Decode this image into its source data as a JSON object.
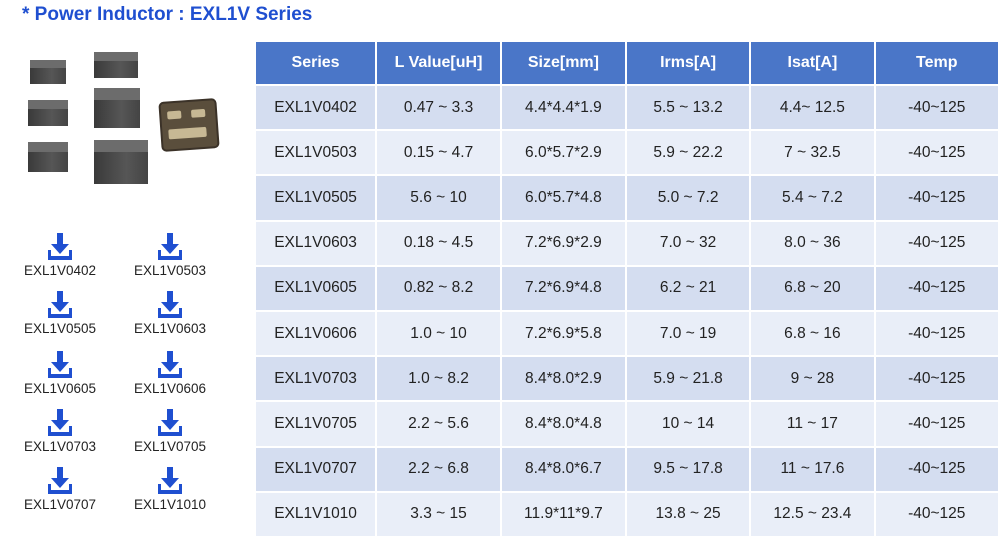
{
  "title": "* Power Inductor : EXL1V Series",
  "theme": {
    "accent": "#1f4fd0",
    "header_bg": "#4a76c8",
    "row_odd": "#d4ddf0",
    "row_even": "#e9eef8"
  },
  "downloads": [
    {
      "label": "EXL1V0402",
      "icon": "download-arrow-icon"
    },
    {
      "label": "EXL1V0503",
      "icon": "download-arrow-icon"
    },
    {
      "label": "EXL1V0505",
      "icon": "download-arrow-icon"
    },
    {
      "label": "EXL1V0603",
      "icon": "download-arrow-icon"
    },
    {
      "label": "EXL1V0605",
      "icon": "download-arrow-icon"
    },
    {
      "label": "EXL1V0606",
      "icon": "download-arrow-icon"
    },
    {
      "label": "EXL1V0703",
      "icon": "download-arrow-icon"
    },
    {
      "label": "EXL1V0705",
      "icon": "download-arrow-icon"
    },
    {
      "label": "EXL1V0707",
      "icon": "download-arrow-icon"
    },
    {
      "label": "EXL1V1010",
      "icon": "download-arrow-icon"
    }
  ],
  "table": {
    "headers": [
      "Series",
      "L Value[uH]",
      "Size[mm]",
      "Irms[A]",
      "Isat[A]",
      "Temp"
    ],
    "rows": [
      [
        "EXL1V0402",
        "0.47 ~ 3.3",
        "4.4*4.4*1.9",
        "5.5 ~ 13.2",
        "4.4~ 12.5",
        "-40~125"
      ],
      [
        "EXL1V0503",
        "0.15 ~ 4.7",
        "6.0*5.7*2.9",
        "5.9 ~ 22.2",
        "7 ~ 32.5",
        "-40~125"
      ],
      [
        "EXL1V0505",
        "5.6 ~ 10",
        "6.0*5.7*4.8",
        "5.0 ~ 7.2",
        "5.4 ~ 7.2",
        "-40~125"
      ],
      [
        "EXL1V0603",
        "0.18 ~ 4.5",
        "7.2*6.9*2.9",
        "7.0 ~ 32",
        "8.0 ~ 36",
        "-40~125"
      ],
      [
        "EXL1V0605",
        "0.82 ~ 8.2",
        "7.2*6.9*4.8",
        "6.2 ~ 21",
        "6.8 ~ 20",
        "-40~125"
      ],
      [
        "EXL1V0606",
        "1.0 ~ 10",
        "7.2*6.9*5.8",
        "7.0 ~ 19",
        "6.8 ~ 16",
        "-40~125"
      ],
      [
        "EXL1V0703",
        "1.0 ~ 8.2",
        "8.4*8.0*2.9",
        "5.9 ~ 21.8",
        "9 ~ 28",
        "-40~125"
      ],
      [
        "EXL1V0705",
        "2.2 ~ 5.6",
        "8.4*8.0*4.8",
        "10 ~ 14",
        "11 ~ 17",
        "-40~125"
      ],
      [
        "EXL1V0707",
        "2.2 ~ 6.8",
        "8.4*8.0*6.7",
        "9.5 ~ 17.8",
        "11 ~ 17.6",
        "-40~125"
      ],
      [
        "EXL1V1010",
        "3.3 ~ 15",
        "11.9*11*9.7",
        "13.8 ~ 25",
        "12.5 ~ 23.4",
        "-40~125"
      ]
    ]
  }
}
